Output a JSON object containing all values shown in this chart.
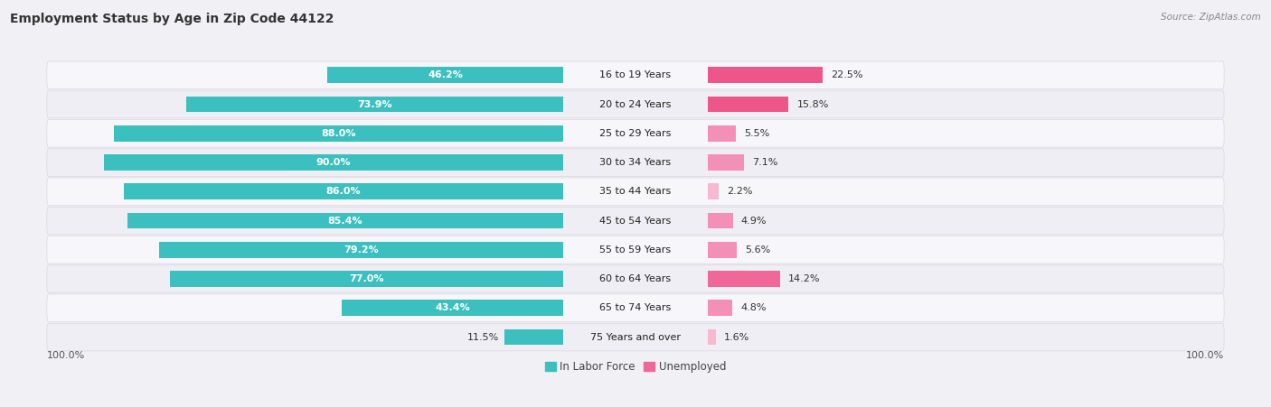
{
  "title": "Employment Status by Age in Zip Code 44122",
  "source": "Source: ZipAtlas.com",
  "categories": [
    "16 to 19 Years",
    "20 to 24 Years",
    "25 to 29 Years",
    "30 to 34 Years",
    "35 to 44 Years",
    "45 to 54 Years",
    "55 to 59 Years",
    "60 to 64 Years",
    "65 to 74 Years",
    "75 Years and over"
  ],
  "labor_force": [
    46.2,
    73.9,
    88.0,
    90.0,
    86.0,
    85.4,
    79.2,
    77.0,
    43.4,
    11.5
  ],
  "unemployed": [
    22.5,
    15.8,
    5.5,
    7.1,
    2.2,
    4.9,
    5.6,
    14.2,
    4.8,
    1.6
  ],
  "labor_color": "#3bbfbf",
  "unemployed_color_dark": "#f06090",
  "unemployed_color_light": "#f8aec8",
  "bg_color": "#f0f0f5",
  "row_odd_color": "#f7f7fb",
  "row_even_color": "#eeeef4",
  "max_value": 100.0,
  "title_fontsize": 10,
  "label_fontsize": 8,
  "source_fontsize": 7.5,
  "legend_fontsize": 8.5,
  "axis_label_fontsize": 8
}
